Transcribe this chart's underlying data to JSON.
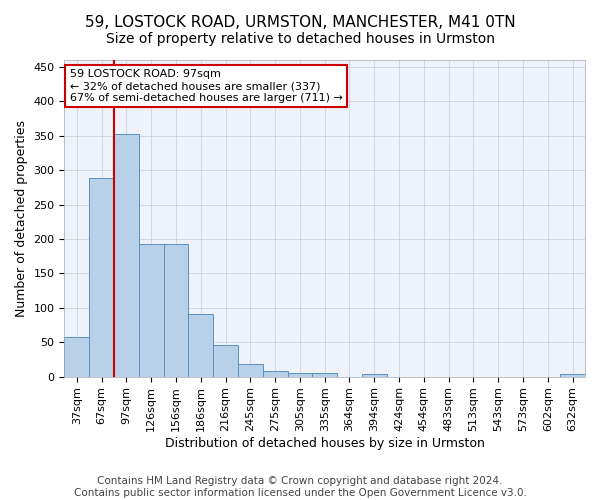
{
  "title": "59, LOSTOCK ROAD, URMSTON, MANCHESTER, M41 0TN",
  "subtitle": "Size of property relative to detached houses in Urmston",
  "xlabel": "Distribution of detached houses by size in Urmston",
  "ylabel": "Number of detached properties",
  "categories": [
    "37sqm",
    "67sqm",
    "97sqm",
    "126sqm",
    "156sqm",
    "186sqm",
    "216sqm",
    "245sqm",
    "275sqm",
    "305sqm",
    "335sqm",
    "364sqm",
    "394sqm",
    "424sqm",
    "454sqm",
    "483sqm",
    "513sqm",
    "543sqm",
    "573sqm",
    "602sqm",
    "632sqm"
  ],
  "values": [
    57,
    289,
    353,
    192,
    192,
    91,
    46,
    19,
    8,
    5,
    5,
    0,
    4,
    0,
    0,
    0,
    0,
    0,
    0,
    0,
    4
  ],
  "bar_color": "#b8d0e8",
  "bar_edge_color": "#5a8fc0",
  "vline_color": "#cc0000",
  "annotation_text": "59 LOSTOCK ROAD: 97sqm\n← 32% of detached houses are smaller (337)\n67% of semi-detached houses are larger (711) →",
  "annotation_box_color": "#ffffff",
  "annotation_box_edge": "#cc0000",
  "footer": "Contains HM Land Registry data © Crown copyright and database right 2024.\nContains public sector information licensed under the Open Government Licence v3.0.",
  "ylim": [
    0,
    460
  ],
  "yticks": [
    0,
    50,
    100,
    150,
    200,
    250,
    300,
    350,
    400,
    450
  ],
  "background_color": "#eef2fa",
  "grid_color": "#cccccc",
  "title_fontsize": 11,
  "subtitle_fontsize": 10,
  "xlabel_fontsize": 9,
  "ylabel_fontsize": 9,
  "tick_fontsize": 8,
  "footer_fontsize": 7.5
}
